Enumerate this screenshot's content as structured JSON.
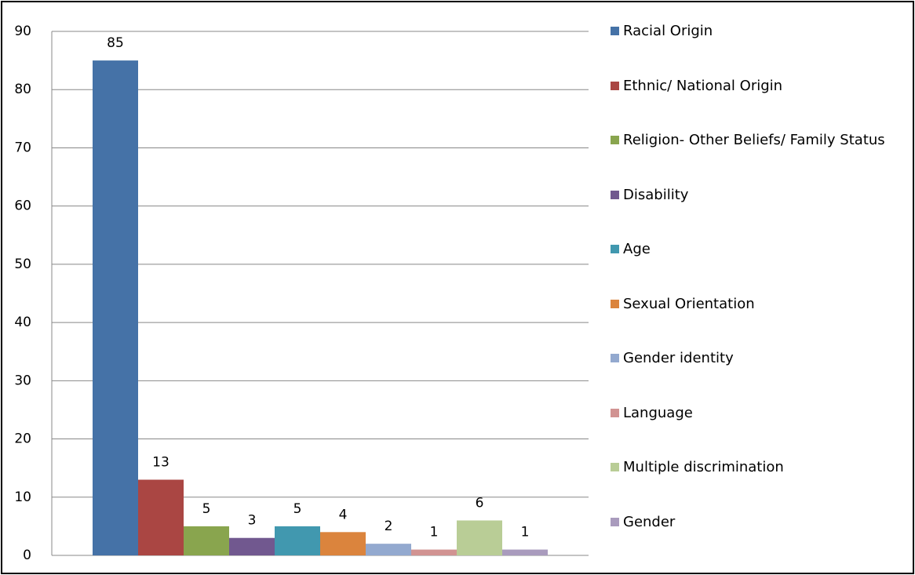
{
  "chart_data": {
    "type": "bar",
    "categories": [
      null
    ],
    "series": [
      {
        "name": "Racial Origin",
        "color": "#4572a7",
        "values": [
          85
        ]
      },
      {
        "name": "Ethnic/ National Origin",
        "color": "#aa4643",
        "values": [
          13
        ]
      },
      {
        "name": "Religion- Other Beliefs/ Family Status",
        "color": "#89a54e",
        "values": [
          5
        ]
      },
      {
        "name": "Disability",
        "color": "#71588f",
        "values": [
          3
        ]
      },
      {
        "name": "Age",
        "color": "#4198af",
        "values": [
          5
        ]
      },
      {
        "name": "Sexual Orientation",
        "color": "#db843d",
        "values": [
          4
        ]
      },
      {
        "name": "Gender identity",
        "color": "#93a9cf",
        "values": [
          2
        ]
      },
      {
        "name": "Language",
        "color": "#d19392",
        "values": [
          1
        ]
      },
      {
        "name": "Multiple discrimination",
        "color": "#b9cd96",
        "values": [
          6
        ]
      },
      {
        "name": "Gender",
        "color": "#a99bbd",
        "values": [
          1
        ]
      }
    ],
    "ylim": [
      0,
      90
    ],
    "yticks": [
      0,
      10,
      20,
      30,
      40,
      50,
      60,
      70,
      80,
      90
    ],
    "grid": true,
    "legend": "right"
  }
}
